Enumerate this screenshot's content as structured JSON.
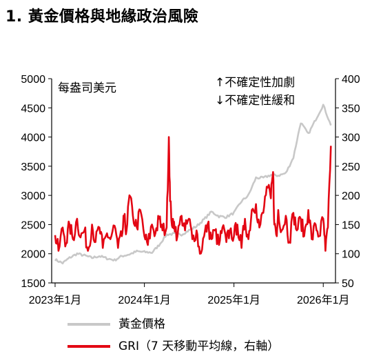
{
  "title": "1. 黃金價格與地緣政治風險",
  "colors": {
    "gold": "#c8c8c8",
    "gri": "#e30613",
    "axis": "#000000"
  },
  "chart_data": {
    "type": "line",
    "title": "1. 黃金價格與地緣政治風險",
    "x_tick_labels": [
      "2023年1月",
      "2024年1月",
      "2025年1月",
      "2026年1月"
    ],
    "x_tick_dates": [
      "2023-01",
      "2024-01",
      "2025-01",
      "2026-01"
    ],
    "x_range": [
      "2023-01",
      "2026-02"
    ],
    "left_axis": {
      "unit_label": "每盎司美元",
      "ylim": [
        1500,
        5000
      ],
      "ticks": [
        "5000",
        "4500",
        "4000",
        "3500",
        "3000",
        "2500",
        "2000",
        "1500"
      ]
    },
    "right_axis": {
      "ylim": [
        50,
        400
      ],
      "ticks": [
        "400",
        "350",
        "300",
        "250",
        "200",
        "150",
        "100",
        "50"
      ]
    },
    "annotations": [
      "↑不確定性加劇",
      "↓不確定性緩和"
    ],
    "grid": false,
    "legend_position": "bottom",
    "series": [
      {
        "name": "黃金價格",
        "axis": "left",
        "x": [
          "2023-01",
          "2023-02",
          "2023-03",
          "2023-04",
          "2023-05",
          "2023-06",
          "2023-07",
          "2023-08",
          "2023-09",
          "2023-10",
          "2023-11",
          "2023-12",
          "2024-01",
          "2024-02",
          "2024-03",
          "2024-04",
          "2024-05",
          "2024-06",
          "2024-07",
          "2024-08",
          "2024-09",
          "2024-10",
          "2024-11",
          "2024-12",
          "2025-01",
          "2025-02",
          "2025-03",
          "2025-04",
          "2025-05",
          "2025-06",
          "2025-07",
          "2025-08",
          "2025-09",
          "2025-10",
          "2025-11",
          "2025-12",
          "2026-01",
          "2026-02"
        ],
        "values": [
          1900,
          1840,
          1930,
          2000,
          1970,
          1930,
          1960,
          1920,
          1890,
          1960,
          1990,
          2040,
          2030,
          2020,
          2150,
          2330,
          2340,
          2330,
          2400,
          2470,
          2590,
          2720,
          2640,
          2630,
          2700,
          2900,
          3000,
          3300,
          3300,
          3350,
          3340,
          3380,
          3650,
          4250,
          4050,
          4300,
          4550,
          4200
        ]
      },
      {
        "name": "GRI（7 天移動平均線，右軸）",
        "axis": "right",
        "x": [
          "2023-01-01",
          "2023-01-15",
          "2023-02-01",
          "2023-02-15",
          "2023-03-01",
          "2023-03-15",
          "2023-04-01",
          "2023-04-15",
          "2023-05-01",
          "2023-05-15",
          "2023-06-01",
          "2023-06-15",
          "2023-07-01",
          "2023-07-15",
          "2023-08-01",
          "2023-08-15",
          "2023-09-01",
          "2023-09-15",
          "2023-10-01",
          "2023-10-10",
          "2023-10-20",
          "2023-11-01",
          "2023-11-15",
          "2023-12-01",
          "2023-12-15",
          "2024-01-01",
          "2024-01-15",
          "2024-02-01",
          "2024-02-15",
          "2024-03-01",
          "2024-03-15",
          "2024-04-01",
          "2024-04-10",
          "2024-04-15",
          "2024-04-25",
          "2024-05-01",
          "2024-05-15",
          "2024-06-01",
          "2024-06-15",
          "2024-07-01",
          "2024-07-15",
          "2024-08-01",
          "2024-08-15",
          "2024-09-01",
          "2024-09-15",
          "2024-10-01",
          "2024-10-15",
          "2024-11-01",
          "2024-11-15",
          "2024-12-01",
          "2024-12-15",
          "2025-01-01",
          "2025-01-15",
          "2025-02-01",
          "2025-02-15",
          "2025-03-01",
          "2025-03-15",
          "2025-04-01",
          "2025-04-15",
          "2025-05-01",
          "2025-05-15",
          "2025-06-01",
          "2025-06-10",
          "2025-06-15",
          "2025-06-25",
          "2025-07-01",
          "2025-07-15",
          "2025-08-01",
          "2025-08-15",
          "2025-09-01",
          "2025-09-15",
          "2025-10-01",
          "2025-10-15",
          "2025-11-01",
          "2025-11-15",
          "2025-12-01",
          "2025-12-15",
          "2026-01-01",
          "2026-01-10",
          "2026-01-20",
          "2026-02-01"
        ],
        "values": [
          132,
          105,
          145,
          118,
          150,
          125,
          160,
          128,
          140,
          105,
          150,
          120,
          145,
          110,
          135,
          125,
          148,
          110,
          130,
          160,
          140,
          200,
          165,
          145,
          175,
          130,
          115,
          150,
          135,
          160,
          140,
          145,
          300,
          190,
          145,
          155,
          130,
          165,
          140,
          160,
          125,
          140,
          100,
          130,
          150,
          125,
          140,
          115,
          145,
          120,
          140,
          130,
          150,
          110,
          160,
          125,
          175,
          185,
          145,
          170,
          215,
          195,
          240,
          150,
          130,
          175,
          140,
          165,
          120,
          170,
          140,
          160,
          130,
          175,
          125,
          150,
          130,
          160,
          105,
          145,
          285
        ]
      }
    ]
  }
}
